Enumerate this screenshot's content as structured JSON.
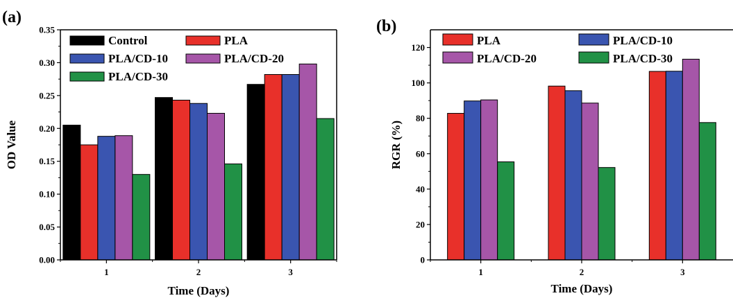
{
  "chart_data": [
    {
      "panel_label": "(a)",
      "type": "bar",
      "categories": [
        "1",
        "2",
        "3"
      ],
      "xlabel": "Time (Days)",
      "ylabel": "OD Value",
      "ylim": [
        0,
        0.35
      ],
      "yticks": [
        "0.00",
        "0.05",
        "0.10",
        "0.15",
        "0.20",
        "0.25",
        "0.30",
        "0.35"
      ],
      "grid": false,
      "legend_placement": "top-left",
      "series": [
        {
          "name": "Control",
          "color": "#000000",
          "values": [
            0.205,
            0.247,
            0.267
          ]
        },
        {
          "name": "PLA",
          "color": "#e8302a",
          "values": [
            0.175,
            0.243,
            0.282
          ]
        },
        {
          "name": "PLA/CD-10",
          "color": "#3a55b0",
          "values": [
            0.188,
            0.238,
            0.282
          ]
        },
        {
          "name": "PLA/CD-20",
          "color": "#a656a8",
          "values": [
            0.189,
            0.223,
            0.298
          ]
        },
        {
          "name": "PLA/CD-30",
          "color": "#219146",
          "values": [
            0.13,
            0.146,
            0.215
          ]
        }
      ]
    },
    {
      "panel_label": "(b)",
      "type": "bar",
      "categories": [
        "1",
        "2",
        "3"
      ],
      "xlabel": "Time (Days)",
      "ylabel": "RGR (%)",
      "ylim": [
        0,
        130
      ],
      "yticks": [
        "0",
        "20",
        "40",
        "60",
        "80",
        "100",
        "120"
      ],
      "grid": false,
      "legend_placement": "top",
      "series": [
        {
          "name": "PLA",
          "color": "#e8302a",
          "values": [
            82.8,
            98.2,
            106.5
          ]
        },
        {
          "name": "PLA/CD-10",
          "color": "#3a55b0",
          "values": [
            89.8,
            95.6,
            106.6
          ]
        },
        {
          "name": "PLA/CD-20",
          "color": "#a656a8",
          "values": [
            90.4,
            88.6,
            113.4
          ]
        },
        {
          "name": "PLA/CD-30",
          "color": "#219146",
          "values": [
            55.4,
            52.2,
            77.6
          ]
        }
      ]
    }
  ]
}
